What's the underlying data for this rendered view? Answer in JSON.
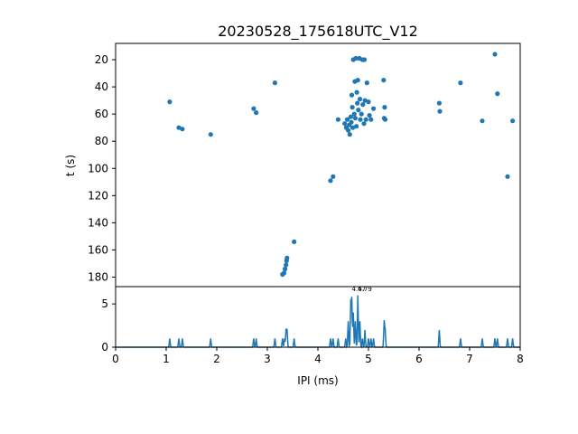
{
  "chart_data": [
    {
      "type": "scatter",
      "title": "20230528_175618UTC_V12",
      "xlabel": "",
      "ylabel": "t (s)",
      "xlim": [
        0,
        8
      ],
      "ylim": [
        187,
        8
      ],
      "y_inverted": true,
      "yticks": [
        20,
        40,
        60,
        80,
        100,
        120,
        140,
        160,
        180
      ],
      "grid": false,
      "color": "#1f77b4",
      "points": [
        [
          1.07,
          51
        ],
        [
          1.25,
          70
        ],
        [
          1.32,
          71
        ],
        [
          1.88,
          75
        ],
        [
          2.73,
          56
        ],
        [
          2.78,
          59
        ],
        [
          3.15,
          37
        ],
        [
          3.3,
          178
        ],
        [
          3.33,
          177
        ],
        [
          3.35,
          174
        ],
        [
          3.37,
          171
        ],
        [
          3.38,
          168
        ],
        [
          3.39,
          166
        ],
        [
          3.53,
          154
        ],
        [
          4.25,
          109
        ],
        [
          4.3,
          106
        ],
        [
          4.4,
          64
        ],
        [
          4.53,
          67
        ],
        [
          4.56,
          70
        ],
        [
          4.58,
          64
        ],
        [
          4.6,
          72
        ],
        [
          4.62,
          68
        ],
        [
          4.63,
          75
        ],
        [
          4.65,
          62
        ],
        [
          4.66,
          66
        ],
        [
          4.67,
          46
        ],
        [
          4.68,
          55
        ],
        [
          4.69,
          70
        ],
        [
          4.7,
          20
        ],
        [
          4.72,
          60
        ],
        [
          4.73,
          36
        ],
        [
          4.74,
          63
        ],
        [
          4.75,
          19
        ],
        [
          4.76,
          69
        ],
        [
          4.77,
          44
        ],
        [
          4.78,
          52
        ],
        [
          4.79,
          35
        ],
        [
          4.8,
          57
        ],
        [
          4.82,
          19
        ],
        [
          4.83,
          49
        ],
        [
          4.84,
          64
        ],
        [
          4.86,
          60
        ],
        [
          4.88,
          20
        ],
        [
          4.89,
          53
        ],
        [
          4.91,
          67
        ],
        [
          4.92,
          20
        ],
        [
          4.93,
          50
        ],
        [
          4.95,
          64
        ],
        [
          4.97,
          37
        ],
        [
          5.0,
          51
        ],
        [
          5.02,
          61
        ],
        [
          5.05,
          64
        ],
        [
          5.1,
          56
        ],
        [
          5.3,
          35
        ],
        [
          5.31,
          63
        ],
        [
          5.32,
          55
        ],
        [
          5.33,
          64
        ],
        [
          6.4,
          52
        ],
        [
          6.41,
          58
        ],
        [
          6.82,
          37
        ],
        [
          7.25,
          65
        ],
        [
          7.5,
          16
        ],
        [
          7.55,
          45
        ],
        [
          7.75,
          106
        ],
        [
          7.85,
          65
        ]
      ]
    },
    {
      "type": "line",
      "xlabel": "IPI (ms)",
      "ylabel": "",
      "xlim": [
        0,
        8
      ],
      "ylim": [
        0,
        7
      ],
      "xticks": [
        0,
        1,
        2,
        3,
        4,
        5,
        6,
        7,
        8
      ],
      "yticks": [
        0,
        5
      ],
      "color": "#1f77b4",
      "annotations": [
        {
          "text": "4.67",
          "x": 4.67,
          "y": 6.5
        },
        {
          "text": "4.79",
          "x": 4.79,
          "y": 6.5
        }
      ],
      "peaks": [
        [
          1.07,
          1
        ],
        [
          1.25,
          1
        ],
        [
          1.32,
          1
        ],
        [
          1.88,
          1
        ],
        [
          2.73,
          1
        ],
        [
          2.78,
          1
        ],
        [
          3.15,
          1
        ],
        [
          3.3,
          1
        ],
        [
          3.34,
          1
        ],
        [
          3.37,
          2
        ],
        [
          3.39,
          2
        ],
        [
          3.53,
          1
        ],
        [
          4.25,
          1
        ],
        [
          4.3,
          1
        ],
        [
          4.4,
          1
        ],
        [
          4.55,
          1
        ],
        [
          4.6,
          3
        ],
        [
          4.65,
          5
        ],
        [
          4.67,
          5.5
        ],
        [
          4.7,
          4
        ],
        [
          4.74,
          3
        ],
        [
          4.79,
          6
        ],
        [
          4.83,
          3
        ],
        [
          4.88,
          1
        ],
        [
          4.93,
          2
        ],
        [
          5.0,
          1
        ],
        [
          5.05,
          1
        ],
        [
          5.1,
          1
        ],
        [
          5.31,
          3
        ],
        [
          5.33,
          2
        ],
        [
          6.4,
          2
        ],
        [
          6.82,
          1
        ],
        [
          7.25,
          1
        ],
        [
          7.5,
          1
        ],
        [
          7.55,
          1
        ],
        [
          7.75,
          1
        ],
        [
          7.85,
          1
        ]
      ]
    }
  ]
}
